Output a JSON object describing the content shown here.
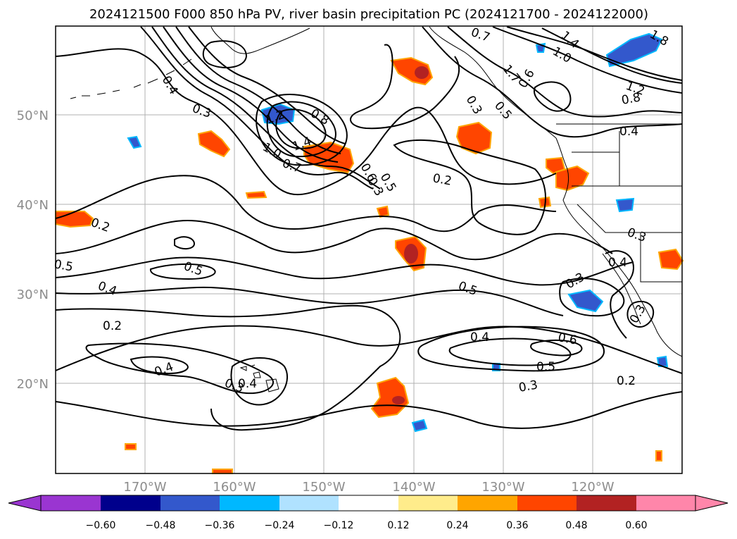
{
  "title": "2024121500 F000 850 hPa PV, river basin precipitation PC (2024121700 - 2024122000)",
  "lat_labels": [
    "50°N",
    "40°N",
    "30°N",
    "20°N"
  ],
  "lon_labels": [
    "170°W",
    "160°W",
    "150°W",
    "140°W",
    "130°W",
    "120°W"
  ],
  "contour_labels": [
    "0.4",
    "0.3",
    "1.2",
    "0.8",
    "1.0",
    "1.4",
    "0.7",
    "0.6",
    "0.5",
    "0.2",
    "0.2",
    "0.5",
    "0.4",
    "0.5",
    "0.2",
    "0.4",
    "0.3",
    "0.4",
    "0.5",
    "0.6",
    "0.5",
    "0.3",
    "0.2",
    "0.3",
    "0.4",
    "0.3",
    "0.7",
    "1.7",
    "0.5",
    "0.3",
    "0.6",
    "1.0",
    "1.4",
    "1.8",
    "1.2",
    "0.8",
    "0.4",
    "0.3",
    "0.4",
    "0.3"
  ],
  "colorbar": {
    "tick_labels": [
      "−0.60",
      "−0.48",
      "−0.36",
      "−0.24",
      "−0.12",
      "0.12",
      "0.24",
      "0.36",
      "0.48",
      "0.60"
    ],
    "colors": [
      "#9a35d1",
      "#00008c",
      "#3358cc",
      "#00b8ff",
      "#b0e2ff",
      "#ffffff",
      "#ffec8b",
      "#ffa500",
      "#ff4500",
      "#b22222",
      "#ff86aa"
    ]
  },
  "colors": {
    "positive_strong": "#b22222",
    "positive": "#ff4500",
    "positive_weak": "#ffa500",
    "negative": "#3358cc",
    "negative_weak": "#00b8ff"
  }
}
